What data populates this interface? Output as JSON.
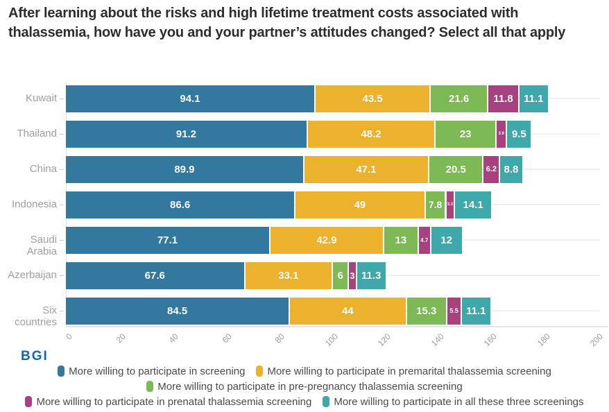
{
  "title": "After learning about the risks and high lifetime treatment costs associated with thalassemia, how have you and your partner’s attitudes changed? Select all that apply",
  "logo": "BGI",
  "chart_data": {
    "type": "bar",
    "stacked": true,
    "orientation": "horizontal",
    "title": "After learning about the risks and high lifetime treatment costs associated with thalassemia, how have you and your partner’s attitudes changed? Select all that apply",
    "categories": [
      "Kuwait",
      "Thailand",
      "China",
      "Indonesia",
      "Saudi Arabia",
      "Azerbaijan",
      "Six countries"
    ],
    "series": [
      {
        "name": "More willing to participate in screening",
        "color": "#33789F",
        "values": [
          94.1,
          91.2,
          89.9,
          86.6,
          77.1,
          67.6,
          84.5
        ]
      },
      {
        "name": "More willing to participate in premarital thalassemia screening",
        "color": "#ECB22D",
        "values": [
          43.5,
          48.2,
          47.1,
          49,
          42.9,
          33.1,
          44
        ]
      },
      {
        "name": "More willing to participate in pre-pregnancy thalassemia screening",
        "color": "#7DB954",
        "values": [
          21.6,
          23,
          20.5,
          7.8,
          13,
          6,
          15.3
        ]
      },
      {
        "name": "More willing to participate in prenatal thalassemia screening",
        "color": "#A8417F",
        "values": [
          11.8,
          3.9,
          6.2,
          3.3,
          4.7,
          3,
          5.5
        ]
      },
      {
        "name": "More willing to participate in all these three screenings",
        "color": "#3FA8AB",
        "values": [
          11.1,
          9.5,
          8.8,
          14.1,
          12,
          11.3,
          11.1
        ]
      }
    ],
    "xlabel": "",
    "ylabel": "",
    "xlim": [
      0,
      200
    ],
    "xticks": [
      0,
      20,
      40,
      60,
      80,
      100,
      120,
      140,
      160,
      180,
      200
    ],
    "grid": "row-center-lines",
    "legend_position": "bottom",
    "legend_rows": [
      [
        0,
        1
      ],
      [
        2
      ],
      [
        3,
        4
      ]
    ],
    "value_labels": "inside-white-bold"
  }
}
